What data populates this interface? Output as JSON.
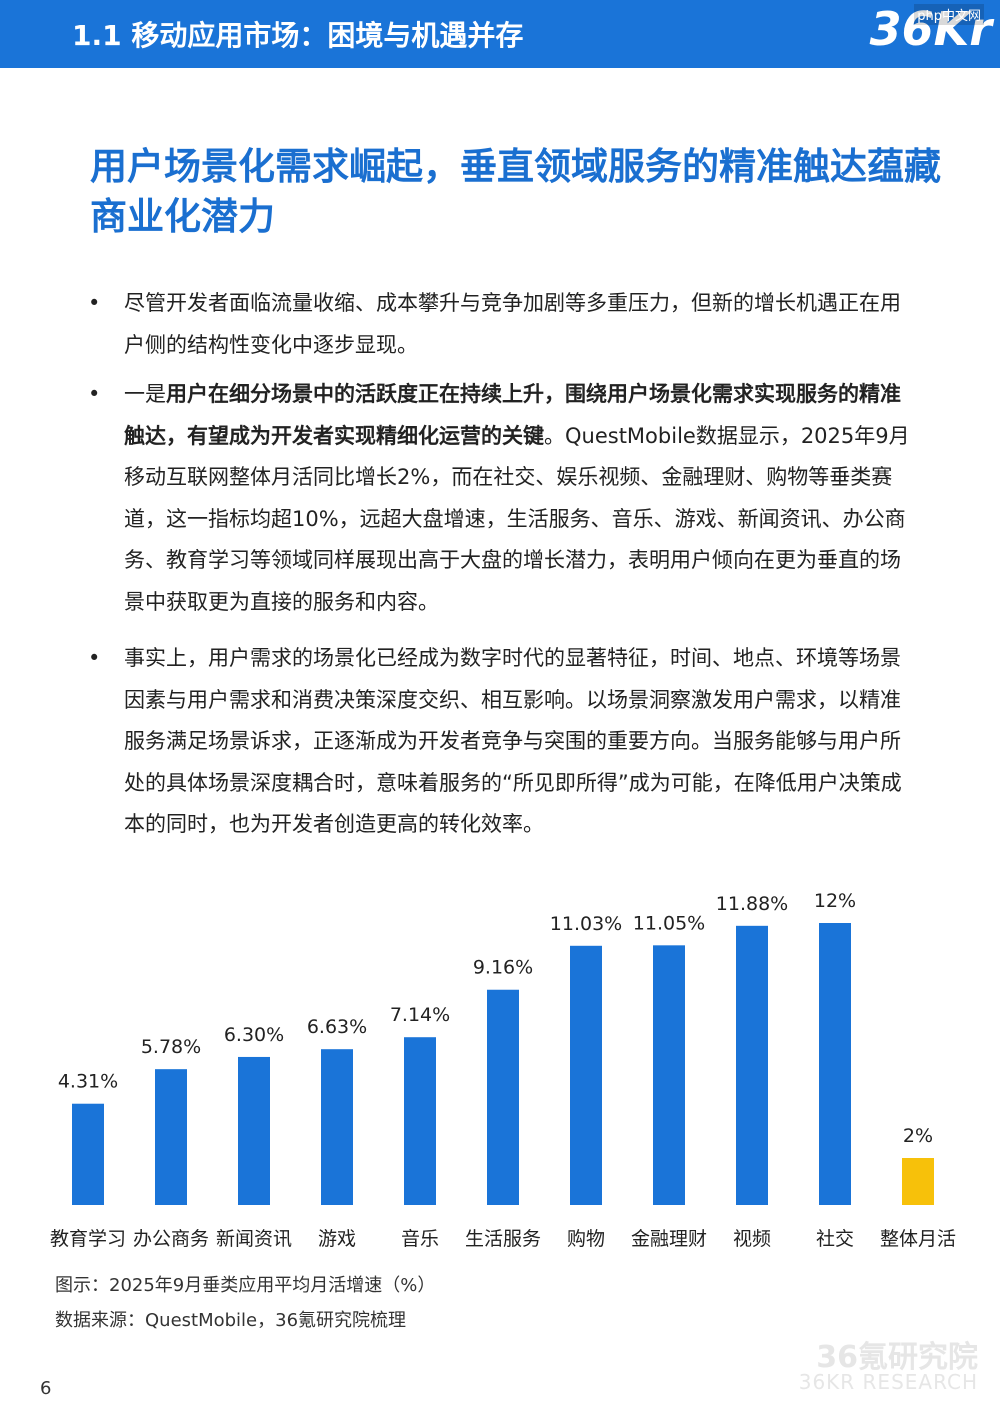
{
  "header": {
    "title": "1.1 移动应用市场：困境与机遇并存",
    "logo": "36Kr",
    "site_mark": "php中文网"
  },
  "title": "用户场景化需求崛起，垂直领域服务的精准触达蕴藏商业化潜力",
  "bullets": [
    {
      "marker": "•",
      "segments": [
        "尽管开发者面临流量收缩、成本攀升与竞争加剧等多重压力，但新的增长机遇正在用户侧的结构性变化中逐步显现。"
      ]
    },
    {
      "marker": "•",
      "segments": [
        "一是",
        "用户在细分场景中的活跃度正在持续上升，围绕用户场景化需求实现服务的精准触达，有望成为开发者实现精细化运营的关键",
        "。QuestMobile数据显示，2025年9月移动互联网整体月活同比增长2%，而在社交、娱乐视频、金融理财、购物等垂类赛道，这一指标均超10%，远超大盘增速，生活服务、音乐、游戏、新闻资讯、办公商务、教育学习等领域同样展现出高于大盘的增长潜力，表明用户倾向在更为垂直的场景中获取更为直接的服务和内容。"
      ]
    },
    {
      "marker": "•",
      "segments": [
        "事实上，用户需求的场景化已经成为数字时代的显著特征，时间、地点、环境等场景因素与用户需求和消费决策深度交织、相互影响。以场景洞察激发用户需求，以精准服务满足场景诉求，正逐渐成为开发者竞争与突围的重要方向。当服务能够与用户所处的具体场景深度耦合时，意味着服务的“所见即所得”成为可能，在降低用户决策成本的同时，也为开发者创造更高的转化效率。"
      ]
    }
  ],
  "chart_data": {
    "type": "bar",
    "categories": [
      "教育学习",
      "办公商务",
      "新闻资讯",
      "游戏",
      "音乐",
      "生活服务",
      "购物",
      "金融理财",
      "视频",
      "社交",
      "整体月活"
    ],
    "values": [
      4.31,
      5.78,
      6.3,
      6.63,
      7.14,
      9.16,
      11.03,
      11.05,
      11.88,
      12,
      2
    ],
    "value_labels": [
      "4.31%",
      "5.78%",
      "6.30%",
      "6.63%",
      "7.14%",
      "9.16%",
      "11.03%",
      "11.05%",
      "11.88%",
      "12%",
      "2%"
    ],
    "colors": [
      "#1a74d8",
      "#1a74d8",
      "#1a74d8",
      "#1a74d8",
      "#1a74d8",
      "#1a74d8",
      "#1a74d8",
      "#1a74d8",
      "#1a74d8",
      "#1a74d8",
      "#f7c10a"
    ]
  },
  "caption": "图示：2025年9月垂类应用平均月活增速（%）",
  "source": "数据来源：QuestMobile，36氪研究院梳理",
  "page_number": "6",
  "watermark": {
    "name": "36氪研究院",
    "english": "36KR RESEARCH"
  }
}
